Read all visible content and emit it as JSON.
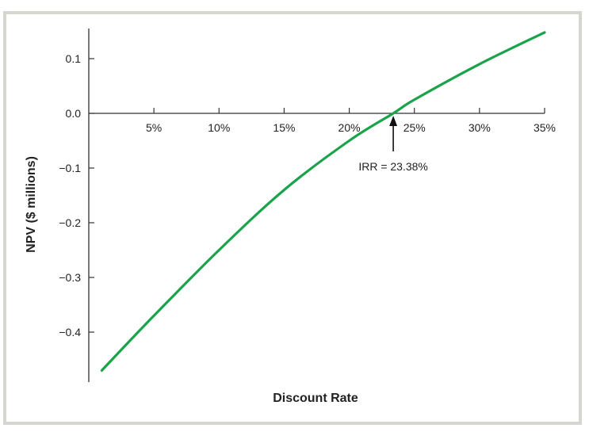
{
  "chart_data": {
    "type": "line",
    "title": "",
    "xlabel": "Discount Rate",
    "ylabel": "NPV ($ millions)",
    "xlim": [
      0,
      35
    ],
    "ylim": [
      -0.48,
      0.15
    ],
    "x_ticks": [
      {
        "value": 5,
        "label": "5%"
      },
      {
        "value": 10,
        "label": "10%"
      },
      {
        "value": 15,
        "label": "15%"
      },
      {
        "value": 20,
        "label": "20%"
      },
      {
        "value": 25,
        "label": "25%"
      },
      {
        "value": 30,
        "label": "30%"
      },
      {
        "value": 35,
        "label": "35%"
      }
    ],
    "y_ticks": [
      {
        "value": 0.1,
        "label": "0.1"
      },
      {
        "value": 0.0,
        "label": "0.0"
      },
      {
        "value": -0.1,
        "label": "−0.1"
      },
      {
        "value": -0.2,
        "label": "−0.2"
      },
      {
        "value": -0.3,
        "label": "−0.3"
      },
      {
        "value": -0.4,
        "label": "−0.4"
      }
    ],
    "series": [
      {
        "color": "#1aa34a",
        "x": [
          1,
          5,
          10,
          15,
          20,
          23.38,
          25,
          30,
          35
        ],
        "y": [
          -0.47,
          -0.37,
          -0.25,
          -0.14,
          -0.05,
          0.0,
          0.025,
          0.09,
          0.148
        ]
      }
    ],
    "annotations": [
      {
        "text": "IRR = 23.38%",
        "x": 23.38,
        "y": 0.0
      }
    ],
    "grid": false,
    "colors": {
      "line": "#1aa34a",
      "axis": "#333333",
      "frame": "#d6d6d0"
    }
  }
}
